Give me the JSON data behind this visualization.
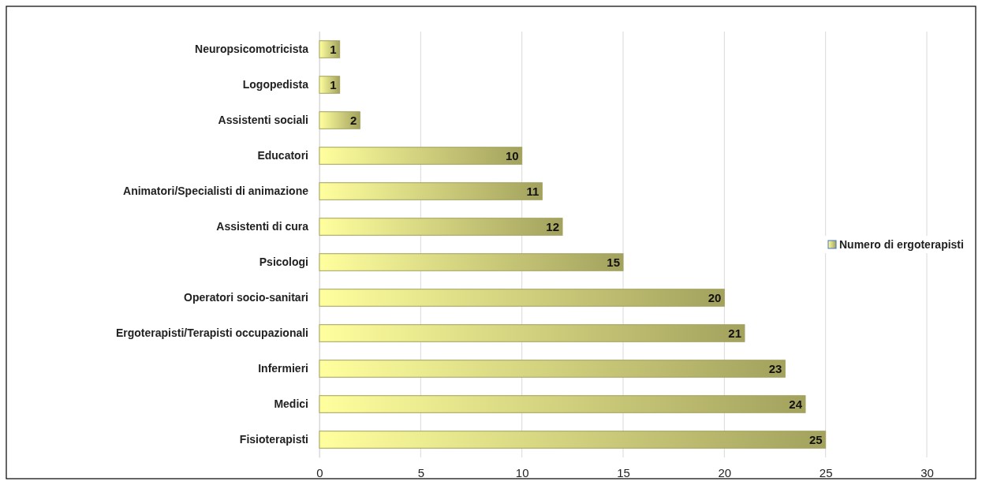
{
  "chart_data": {
    "type": "bar",
    "orientation": "horizontal",
    "categories": [
      "Neuropsicomotricista",
      "Logopedista",
      "Assistenti sociali",
      "Educatori",
      "Animatori/Specialisti di animazione",
      "Assistenti di cura",
      "Psicologi",
      "Operatori socio-sanitari",
      "Ergoterapisti/Terapisti occupazionali",
      "Infermieri",
      "Medici",
      "Fisioterapisti"
    ],
    "series": [
      {
        "name": "Numero di ergoterapisti",
        "color": "#a3a25e",
        "values": [
          1,
          1,
          2,
          10,
          11,
          12,
          15,
          20,
          21,
          23,
          24,
          25
        ]
      }
    ],
    "xlim": [
      0,
      30
    ],
    "xticks": [
      0,
      5,
      10,
      15,
      20,
      25,
      30
    ],
    "grid": "x",
    "legend": "right",
    "data_labels": true
  }
}
